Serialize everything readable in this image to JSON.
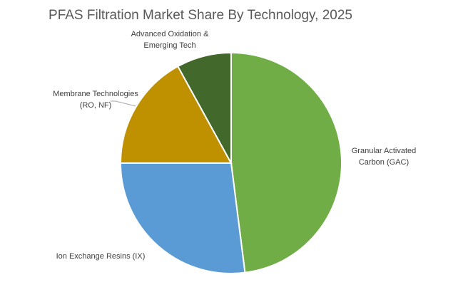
{
  "chart_data": {
    "type": "pie",
    "title": "PFAS Filtration Market Share By Technology, 2025",
    "slices": [
      {
        "label_lines": [
          "Granular Activated",
          "Carbon (GAC)"
        ],
        "value": 48,
        "color": "#70ad47"
      },
      {
        "label_lines": [
          "Ion Exchange Resins (IX)"
        ],
        "value": 27,
        "color": "#5b9bd5"
      },
      {
        "label_lines": [
          "Membrane Technologies",
          "(RO, NF)"
        ],
        "value": 17,
        "color": "#bf9000"
      },
      {
        "label_lines": [
          "Advanced Oxidation &",
          "Emerging Tech"
        ],
        "value": 8,
        "color": "#43682b"
      }
    ],
    "start_angle": "12 o'clock",
    "direction": "clockwise",
    "legend": "none",
    "labels": "outside"
  }
}
